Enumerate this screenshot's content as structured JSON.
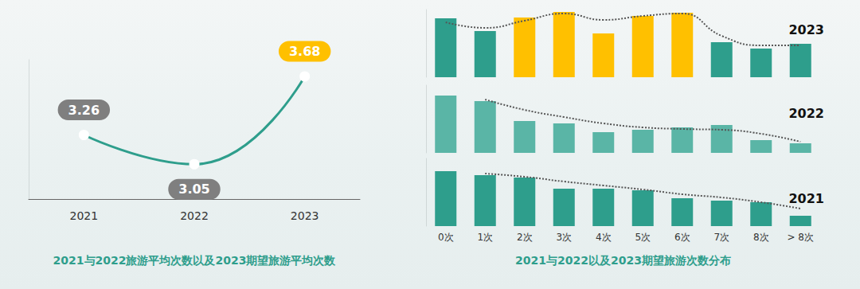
{
  "chart_data": [
    {
      "type": "line",
      "xlabel": "2021与2022旅游平均次数以及2023期望旅游平均次数",
      "categories": [
        "2021",
        "2022",
        "2023"
      ],
      "values": [
        3.26,
        3.05,
        3.68
      ],
      "color": "#2e9e8c",
      "marker": "circle",
      "ylim": [
        2.8,
        3.8
      ],
      "grid": false,
      "data_labels": true,
      "tick_labels": "x"
    },
    {
      "type": "bar",
      "title": "2023",
      "categories": [
        "0次",
        "1次",
        "2次",
        "3次",
        "4次",
        "5次",
        "6次",
        "7次",
        "8次",
        "> 8次"
      ],
      "series": [
        {
          "type": "bar",
          "values": [
            74,
            58,
            75,
            82,
            55,
            77,
            81,
            44,
            36,
            42
          ],
          "colors": [
            "#2e9e8c",
            "#2e9e8c",
            "#ffc000",
            "#ffc000",
            "#ffc000",
            "#ffc000",
            "#ffc000",
            "#2e9e8c",
            "#2e9e8c",
            "#2e9e8c"
          ]
        },
        {
          "type": "line",
          "line_style": "dotted",
          "color": "#555555",
          "values": [
            69,
            62,
            71,
            80,
            72,
            77,
            80,
            52,
            40,
            40
          ]
        }
      ],
      "ylim": [
        0,
        85
      ],
      "grid": false,
      "tick_labels": false
    },
    {
      "type": "bar",
      "title": "2022",
      "categories": [
        "0次",
        "1次",
        "2次",
        "3次",
        "4次",
        "5次",
        "6次",
        "7次",
        "8次",
        "> 8次"
      ],
      "series": [
        {
          "type": "bar",
          "values": [
            72,
            65,
            40,
            37,
            26,
            29,
            32,
            35,
            16,
            12
          ],
          "color": "#5ab5a6"
        },
        {
          "type": "line",
          "line_style": "dotted",
          "color": "#555555",
          "values": [
            null,
            67,
            54,
            45,
            37,
            32,
            30,
            29,
            24,
            14
          ]
        }
      ],
      "ylim": [
        0,
        85
      ],
      "grid": false,
      "tick_labels": false
    },
    {
      "type": "bar",
      "title": "2021",
      "xlabel": "2021与2022以及2023期望旅游次数分布",
      "categories": [
        "0次",
        "1次",
        "2次",
        "3次",
        "4次",
        "5次",
        "6次",
        "7次",
        "8次",
        "> 8次"
      ],
      "series": [
        {
          "type": "bar",
          "values": [
            69,
            64,
            61,
            47,
            47,
            45,
            35,
            32,
            30,
            13
          ],
          "color": "#2e9e8c"
        },
        {
          "type": "line",
          "line_style": "dotted",
          "color": "#555555",
          "values": [
            null,
            66,
            62,
            56,
            51,
            46,
            40,
            36,
            30,
            22
          ]
        }
      ],
      "ylim": [
        0,
        85
      ],
      "grid": false,
      "tick_labels": "x"
    }
  ]
}
